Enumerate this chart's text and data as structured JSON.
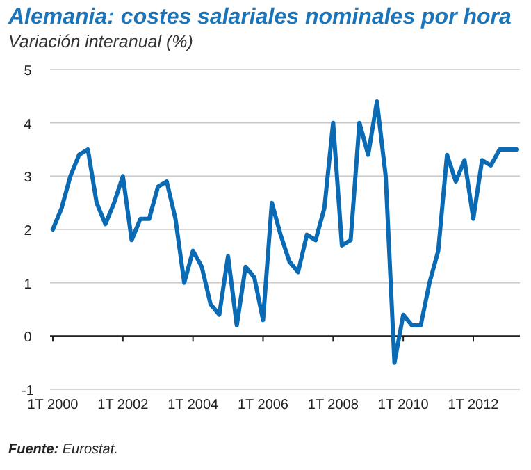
{
  "chart_data": {
    "type": "line",
    "title": "Alemania: costes salariales nominales por hora",
    "subtitle": "Variación interanual (%)",
    "categories": [
      "1T 2000",
      null,
      null,
      null,
      null,
      null,
      null,
      null,
      "1T 2002",
      null,
      null,
      null,
      null,
      null,
      null,
      null,
      "1T 2004",
      null,
      null,
      null,
      null,
      null,
      null,
      null,
      "1T 2006",
      null,
      null,
      null,
      null,
      null,
      null,
      null,
      "1T 2008",
      null,
      null,
      null,
      null,
      null,
      null,
      null,
      "1T 2010",
      null,
      null,
      null,
      null,
      null,
      null,
      null,
      "1T 2012",
      null,
      null,
      null,
      null,
      null
    ],
    "series": [
      {
        "color": "#0a6ab4",
        "values": [
          2.0,
          2.4,
          3.0,
          3.4,
          3.5,
          2.5,
          2.1,
          2.5,
          3.0,
          1.8,
          2.2,
          2.2,
          2.8,
          2.9,
          2.2,
          1.0,
          1.6,
          1.3,
          0.6,
          0.4,
          1.5,
          0.2,
          1.3,
          1.1,
          0.3,
          2.5,
          1.9,
          1.4,
          1.2,
          1.9,
          1.8,
          2.4,
          4.0,
          1.7,
          1.8,
          4.0,
          3.4,
          4.4,
          3.0,
          -0.5,
          0.4,
          0.2,
          0.2,
          1.0,
          1.6,
          3.4,
          2.9,
          3.3,
          2.2,
          3.3,
          3.2,
          3.5,
          3.5,
          3.5
        ]
      }
    ],
    "ylim": [
      -1,
      5
    ],
    "yticks": [
      -1,
      0,
      1,
      2,
      3,
      4,
      5
    ],
    "grid": "y",
    "marker": "none",
    "line_style": "solid",
    "annotations": [
      "Fuente: Eurostat."
    ]
  }
}
